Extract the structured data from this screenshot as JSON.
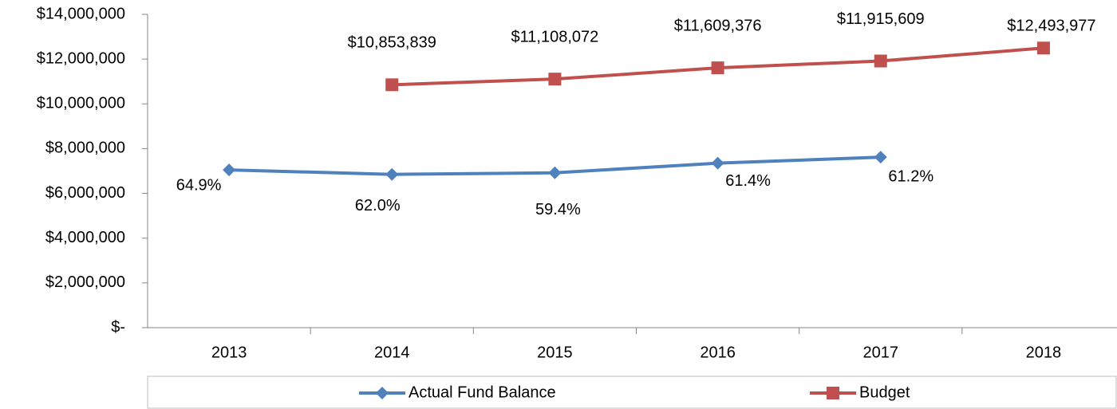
{
  "chart_data": {
    "type": "line",
    "categories": [
      "2013",
      "2014",
      "2015",
      "2016",
      "2017",
      "2018"
    ],
    "series": [
      {
        "name": "Actual Fund Balance",
        "color": "#4f81bd",
        "marker": "diamond",
        "values": [
          7050000,
          6850000,
          6920000,
          7350000,
          7620000,
          null
        ],
        "annotations": [
          "64.9%",
          "62.0%",
          "59.4%",
          "61.4%",
          "61.2%",
          null
        ]
      },
      {
        "name": "Budget",
        "color": "#c0504d",
        "marker": "square",
        "values": [
          null,
          10853839,
          11108072,
          11609376,
          11915609,
          12493977
        ],
        "value_labels": [
          null,
          "$10,853,839",
          "$11,108,072",
          "$11,609,376",
          "$11,915,609",
          "$12,493,977"
        ]
      }
    ],
    "ylim": [
      0,
      14000000
    ],
    "yticks": [
      {
        "value": 0,
        "label": "$-"
      },
      {
        "value": 2000000,
        "label": "$2,000,000"
      },
      {
        "value": 4000000,
        "label": "$4,000,000"
      },
      {
        "value": 6000000,
        "label": "$6,000,000"
      },
      {
        "value": 8000000,
        "label": "$8,000,000"
      },
      {
        "value": 10000000,
        "label": "$10,000,000"
      },
      {
        "value": 12000000,
        "label": "$12,000,000"
      },
      {
        "value": 14000000,
        "label": "$14,000,000"
      }
    ],
    "grid": false,
    "legend": "bottom"
  }
}
